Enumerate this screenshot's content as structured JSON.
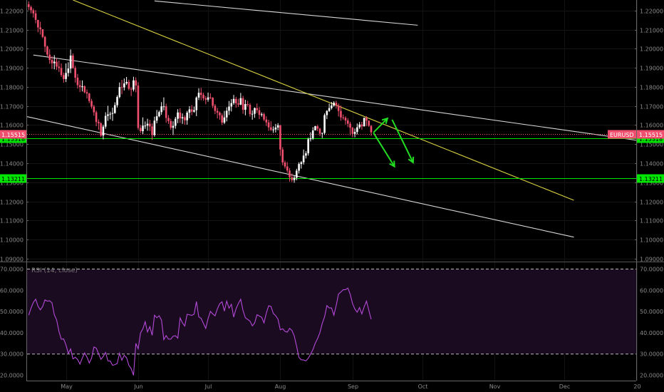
{
  "chart_data": [
    {
      "type": "candlestick",
      "symbol": "EURUSD",
      "last_price": "1.15515",
      "y_ticks": [
        "1.09000",
        "1.10000",
        "1.11000",
        "1.12000",
        "1.13000",
        "1.14000",
        "1.15000",
        "1.16000",
        "1.17000",
        "1.18000",
        "1.19000",
        "1.20000",
        "1.21000",
        "1.22000"
      ],
      "ylim": [
        1.0885,
        1.2255
      ],
      "x_month_labels": [
        "May",
        "Jun",
        "Jul",
        "Aug",
        "Sep",
        "Oct",
        "Nov",
        "Dec",
        "20"
      ],
      "x_month_days": [
        17,
        48,
        78,
        109,
        140,
        170,
        201,
        231,
        262
      ],
      "price_days": [
        1,
        2,
        3,
        4,
        5,
        6,
        7,
        8,
        9,
        10,
        11,
        12,
        13,
        14,
        15,
        16,
        17,
        18,
        19,
        20,
        21,
        22,
        23,
        24,
        25,
        26,
        27,
        28,
        29,
        30,
        31,
        32,
        33,
        34,
        35,
        36,
        37,
        38,
        39,
        40,
        41,
        42,
        43,
        44,
        45,
        46,
        47,
        48,
        49,
        50,
        51,
        52,
        53,
        54,
        55,
        56,
        57,
        58,
        59,
        60,
        61,
        62,
        63,
        64,
        65,
        66,
        67,
        68,
        69,
        70,
        71,
        72,
        73,
        74,
        75,
        76,
        77,
        78,
        79,
        80,
        81,
        82,
        83,
        84,
        85,
        86,
        87,
        88,
        89,
        90,
        91,
        92,
        93,
        94,
        95,
        96,
        97,
        98,
        99,
        100,
        101,
        102,
        103,
        104,
        105,
        106,
        107,
        108,
        109,
        110,
        111,
        112,
        113,
        114,
        115,
        116,
        117,
        118,
        119,
        120,
        121,
        122,
        123,
        124,
        125,
        126,
        127,
        128,
        129,
        130,
        131,
        132,
        133,
        134,
        135,
        136,
        137,
        138,
        139,
        140,
        141,
        142,
        143,
        144,
        145,
        146,
        147,
        148
      ],
      "price_close": [
        1.2218,
        1.2201,
        1.2185,
        1.2151,
        1.2111,
        1.2102,
        1.2062,
        1.2011,
        1.1969,
        1.1941,
        1.1924,
        1.1932,
        1.1906,
        1.1899,
        1.1862,
        1.1841,
        1.1873,
        1.1896,
        1.1964,
        1.1899,
        1.1848,
        1.1809,
        1.1799,
        1.1803,
        1.1772,
        1.1765,
        1.1726,
        1.1697,
        1.1667,
        1.1616,
        1.1609,
        1.1545,
        1.1592,
        1.1648,
        1.1656,
        1.1659,
        1.1663,
        1.1704,
        1.1747,
        1.1799,
        1.1797,
        1.1818,
        1.1826,
        1.179,
        1.1786,
        1.1834,
        1.1807,
        1.1585,
        1.1568,
        1.1597,
        1.1597,
        1.1607,
        1.1593,
        1.1548,
        1.1623,
        1.1646,
        1.1668,
        1.1698,
        1.1698,
        1.1637,
        1.1621,
        1.1586,
        1.1596,
        1.1633,
        1.1666,
        1.1635,
        1.1641,
        1.1625,
        1.1665,
        1.1682,
        1.167,
        1.1678,
        1.1744,
        1.1769,
        1.1758,
        1.174,
        1.1733,
        1.1745,
        1.1743,
        1.1701,
        1.1674,
        1.1665,
        1.1651,
        1.1613,
        1.164,
        1.1675,
        1.1697,
        1.1715,
        1.1737,
        1.1714,
        1.1707,
        1.1741,
        1.168,
        1.171,
        1.1706,
        1.1657,
        1.1659,
        1.1689,
        1.1678,
        1.1653,
        1.1657,
        1.1629,
        1.1614,
        1.1588,
        1.1575,
        1.1577,
        1.1587,
        1.1599,
        1.1472,
        1.1404,
        1.1383,
        1.1362,
        1.1327,
        1.1312,
        1.1324,
        1.1361,
        1.1396,
        1.1405,
        1.144,
        1.1452,
        1.1526,
        1.1531,
        1.1572,
        1.1594,
        1.1581,
        1.1555,
        1.1559,
        1.1652,
        1.1674,
        1.1689,
        1.1702,
        1.1717,
        1.1703,
        1.1674,
        1.164,
        1.1638,
        1.1624,
        1.1607,
        1.1586,
        1.1554,
        1.1564,
        1.1588,
        1.1603,
        1.1593,
        1.1638,
        1.1623,
        1.1596,
        1.1562
      ],
      "price_high": [
        1.2248,
        1.2226,
        1.2211,
        1.2202,
        1.2145,
        1.2141,
        1.2093,
        1.2067,
        1.2016,
        1.1997,
        1.1961,
        1.1966,
        1.1951,
        1.1938,
        1.1923,
        1.1875,
        1.1923,
        1.1929,
        1.1996,
        1.1975,
        1.191,
        1.1868,
        1.1834,
        1.1834,
        1.1808,
        1.1787,
        1.1769,
        1.1737,
        1.1706,
        1.1676,
        1.163,
        1.1615,
        1.1602,
        1.1667,
        1.1701,
        1.167,
        1.1691,
        1.1719,
        1.1756,
        1.1823,
        1.1837,
        1.1844,
        1.1852,
        1.1838,
        1.1799,
        1.1853,
        1.185,
        1.1825,
        1.1601,
        1.164,
        1.1619,
        1.1633,
        1.1627,
        1.1609,
        1.1644,
        1.1679,
        1.1676,
        1.172,
        1.1745,
        1.1712,
        1.1652,
        1.1633,
        1.162,
        1.1643,
        1.1683,
        1.1688,
        1.1661,
        1.165,
        1.1674,
        1.1699,
        1.1704,
        1.1697,
        1.175,
        1.1793,
        1.1795,
        1.1769,
        1.1751,
        1.177,
        1.1766,
        1.1746,
        1.171,
        1.169,
        1.1671,
        1.1661,
        1.1674,
        1.1693,
        1.1726,
        1.1736,
        1.1758,
        1.1748,
        1.1738,
        1.1768,
        1.1753,
        1.1732,
        1.1727,
        1.1715,
        1.1677,
        1.1692,
        1.1713,
        1.1694,
        1.1666,
        1.1665,
        1.1646,
        1.1628,
        1.162,
        1.1593,
        1.1606,
        1.161,
        1.1601,
        1.1484,
        1.1414,
        1.1406,
        1.1375,
        1.1347,
        1.1337,
        1.1371,
        1.1405,
        1.1411,
        1.1472,
        1.1463,
        1.1534,
        1.1562,
        1.1589,
        1.1596,
        1.1602,
        1.1586,
        1.156,
        1.1661,
        1.1678,
        1.1712,
        1.1721,
        1.1725,
        1.1728,
        1.1713,
        1.1702,
        1.1655,
        1.1646,
        1.1636,
        1.1617,
        1.159,
        1.1582,
        1.1608,
        1.1616,
        1.1617,
        1.1639,
        1.1647,
        1.1625,
        1.16
      ],
      "price_low": [
        1.2202,
        1.2185,
        1.2163,
        1.2133,
        1.2086,
        1.2074,
        1.2055,
        1.1982,
        1.1958,
        1.1921,
        1.1894,
        1.1892,
        1.1889,
        1.1878,
        1.1852,
        1.1822,
        1.1825,
        1.1854,
        1.1872,
        1.1895,
        1.1823,
        1.1791,
        1.1773,
        1.1776,
        1.1766,
        1.1739,
        1.1715,
        1.1686,
        1.1649,
        1.1594,
        1.1575,
        1.1537,
        1.1525,
        1.1581,
        1.1622,
        1.163,
        1.1622,
        1.1659,
        1.1692,
        1.174,
        1.1761,
        1.1781,
        1.181,
        1.1782,
        1.1752,
        1.1776,
        1.1772,
        1.1575,
        1.1558,
        1.1553,
        1.158,
        1.157,
        1.1569,
        1.1523,
        1.1539,
        1.1609,
        1.1641,
        1.1654,
        1.1677,
        1.1613,
        1.1606,
        1.1575,
        1.1548,
        1.1581,
        1.161,
        1.1611,
        1.1606,
        1.1602,
        1.1602,
        1.1636,
        1.1652,
        1.1665,
        1.1647,
        1.1731,
        1.173,
        1.1728,
        1.1709,
        1.1722,
        1.1736,
        1.1689,
        1.1657,
        1.1635,
        1.1628,
        1.16,
        1.1605,
        1.1619,
        1.1653,
        1.1671,
        1.1706,
        1.1691,
        1.1695,
        1.1704,
        1.1659,
        1.1651,
        1.1697,
        1.1644,
        1.1628,
        1.1638,
        1.1663,
        1.1631,
        1.1644,
        1.1621,
        1.1595,
        1.157,
        1.1569,
        1.1559,
        1.1561,
        1.1573,
        1.1439,
        1.1389,
        1.1372,
        1.135,
        1.1304,
        1.1301,
        1.1298,
        1.1311,
        1.1346,
        1.1372,
        1.1393,
        1.1425,
        1.144,
        1.1514,
        1.1522,
        1.1573,
        1.1568,
        1.1542,
        1.1532,
        1.1549,
        1.1631,
        1.1669,
        1.1681,
        1.1696,
        1.1686,
        1.1645,
        1.1623,
        1.1627,
        1.1602,
        1.1589,
        1.1546,
        1.1536,
        1.1536,
        1.1551,
        1.158,
        1.1576,
        1.1593,
        1.1595,
        1.1591,
        1.1544
      ],
      "horizontal_levels": [
        {
          "label": "1.15318",
          "value": 1.15318,
          "color": "#00e600"
        },
        {
          "label": "1.13211",
          "value": 1.13211,
          "color": "#00e600"
        }
      ],
      "last_price_color": "#f0506e",
      "bull_color": "#ffffff",
      "bear_color": "#f0506e",
      "trendlines": [
        {
          "color": "#d6d6d6",
          "d1": 3,
          "v1": 1.1967,
          "d2": 265,
          "v2": 1.1515
        },
        {
          "color": "#d6d6d6",
          "d1": 0,
          "v1": 1.1645,
          "d2": 235,
          "v2": 1.1013
        },
        {
          "color": "#d8d040",
          "d1": 20,
          "v1": 1.2255,
          "d2": 235,
          "v2": 1.1206
        },
        {
          "color": "#d6d6d6",
          "d1": 55,
          "v1": 1.225,
          "d2": 168,
          "v2": 1.2123
        }
      ],
      "arrows": [
        {
          "color": "#22dd22",
          "d1": 149,
          "v1": 1.1561,
          "d2": 155,
          "v2": 1.1635
        },
        {
          "color": "#22dd22",
          "d1": 149,
          "v1": 1.1559,
          "d2": 158,
          "v2": 1.1383
        },
        {
          "color": "#22dd22",
          "d1": 157,
          "v1": 1.1628,
          "d2": 166,
          "v2": 1.1404
        }
      ]
    },
    {
      "type": "line",
      "title": "RSI (14, close)",
      "y_ticks": [
        "20.0000",
        "30.0000",
        "40.0000",
        "50.0000",
        "60.0000",
        "70.0000"
      ],
      "ylim": [
        17.5,
        73.2
      ],
      "band": [
        30,
        70
      ],
      "color": "#b44ad8",
      "x": [
        1,
        2,
        3,
        4,
        5,
        6,
        7,
        8,
        9,
        10,
        11,
        12,
        13,
        14,
        15,
        16,
        17,
        18,
        19,
        20,
        21,
        22,
        23,
        24,
        25,
        26,
        27,
        28,
        29,
        30,
        31,
        32,
        33,
        34,
        35,
        36,
        37,
        38,
        39,
        40,
        41,
        42,
        43,
        44,
        45,
        46,
        47,
        48,
        49,
        50,
        51,
        52,
        53,
        54,
        55,
        56,
        57,
        58,
        59,
        60,
        61,
        62,
        63,
        64,
        65,
        66,
        67,
        68,
        69,
        70,
        71,
        72,
        73,
        74,
        75,
        76,
        77,
        78,
        79,
        80,
        81,
        82,
        83,
        84,
        85,
        86,
        87,
        88,
        89,
        90,
        91,
        92,
        93,
        94,
        95,
        96,
        97,
        98,
        99,
        100,
        101,
        102,
        103,
        104,
        105,
        106,
        107,
        108,
        109,
        110,
        111,
        112,
        113,
        114,
        115,
        116,
        117,
        118,
        119,
        120,
        121,
        122,
        123,
        124,
        125,
        126,
        127,
        128,
        129,
        130,
        131,
        132,
        133,
        134,
        135,
        136,
        137,
        138,
        139,
        140,
        141,
        142,
        143,
        144,
        145,
        146,
        147,
        148
      ],
      "values": [
        48.3,
        51.6,
        54.3,
        55.8,
        52.5,
        50.8,
        52.4,
        55.5,
        54.9,
        55.1,
        54.1,
        48.5,
        46.0,
        40.6,
        37.0,
        37.1,
        34.3,
        30.3,
        32.4,
        27.7,
        28.5,
        27.4,
        25.3,
        28.1,
        30.5,
        28.6,
        25.8,
        28.1,
        33.3,
        32.8,
        30.1,
        27.5,
        28.9,
        30.7,
        26.8,
        26.7,
        24.7,
        25.0,
        25.6,
        30.4,
        27.1,
        29.4,
        28.3,
        24.7,
        23.1,
        20.0,
        35.0,
        32.5,
        39.9,
        41.8,
        45.2,
        40.4,
        42.9,
        38.8,
        48.3,
        47.1,
        48.0,
        46.0,
        36.8,
        38.7,
        37.0,
        37.0,
        38.4,
        38.6,
        37.5,
        47.0,
        44.7,
        43.2,
        48.7,
        48.5,
        48.2,
        48.8,
        54.7,
        47.5,
        46.8,
        44.4,
        42.1,
        46.7,
        50.1,
        48.9,
        48.0,
        51.3,
        53.7,
        54.6,
        50.2,
        54.9,
        51.6,
        53.4,
        47.4,
        51.3,
        53.8,
        55.8,
        50.5,
        47.1,
        46.3,
        45.5,
        43.3,
        44.6,
        48.5,
        47.9,
        47.3,
        44.7,
        49.3,
        52.7,
        52.4,
        49.1,
        48.1,
        46.4,
        41.4,
        41.9,
        40.7,
        40.3,
        42.1,
        41.1,
        38.5,
        33.7,
        28.4,
        27.3,
        27.2,
        26.8,
        28.0,
        29.9,
        32.1,
        35.1,
        37.3,
        40.1,
        44.4,
        47.5,
        52.8,
        51.7,
        51.7,
        48.3,
        52.9,
        58.3,
        59.2,
        60.3,
        60.3,
        61.1,
        58.2,
        53.8,
        51.2,
        49.7,
        51.9,
        48.9,
        52.2,
        54.9,
        50.6,
        46.4
      ]
    }
  ]
}
